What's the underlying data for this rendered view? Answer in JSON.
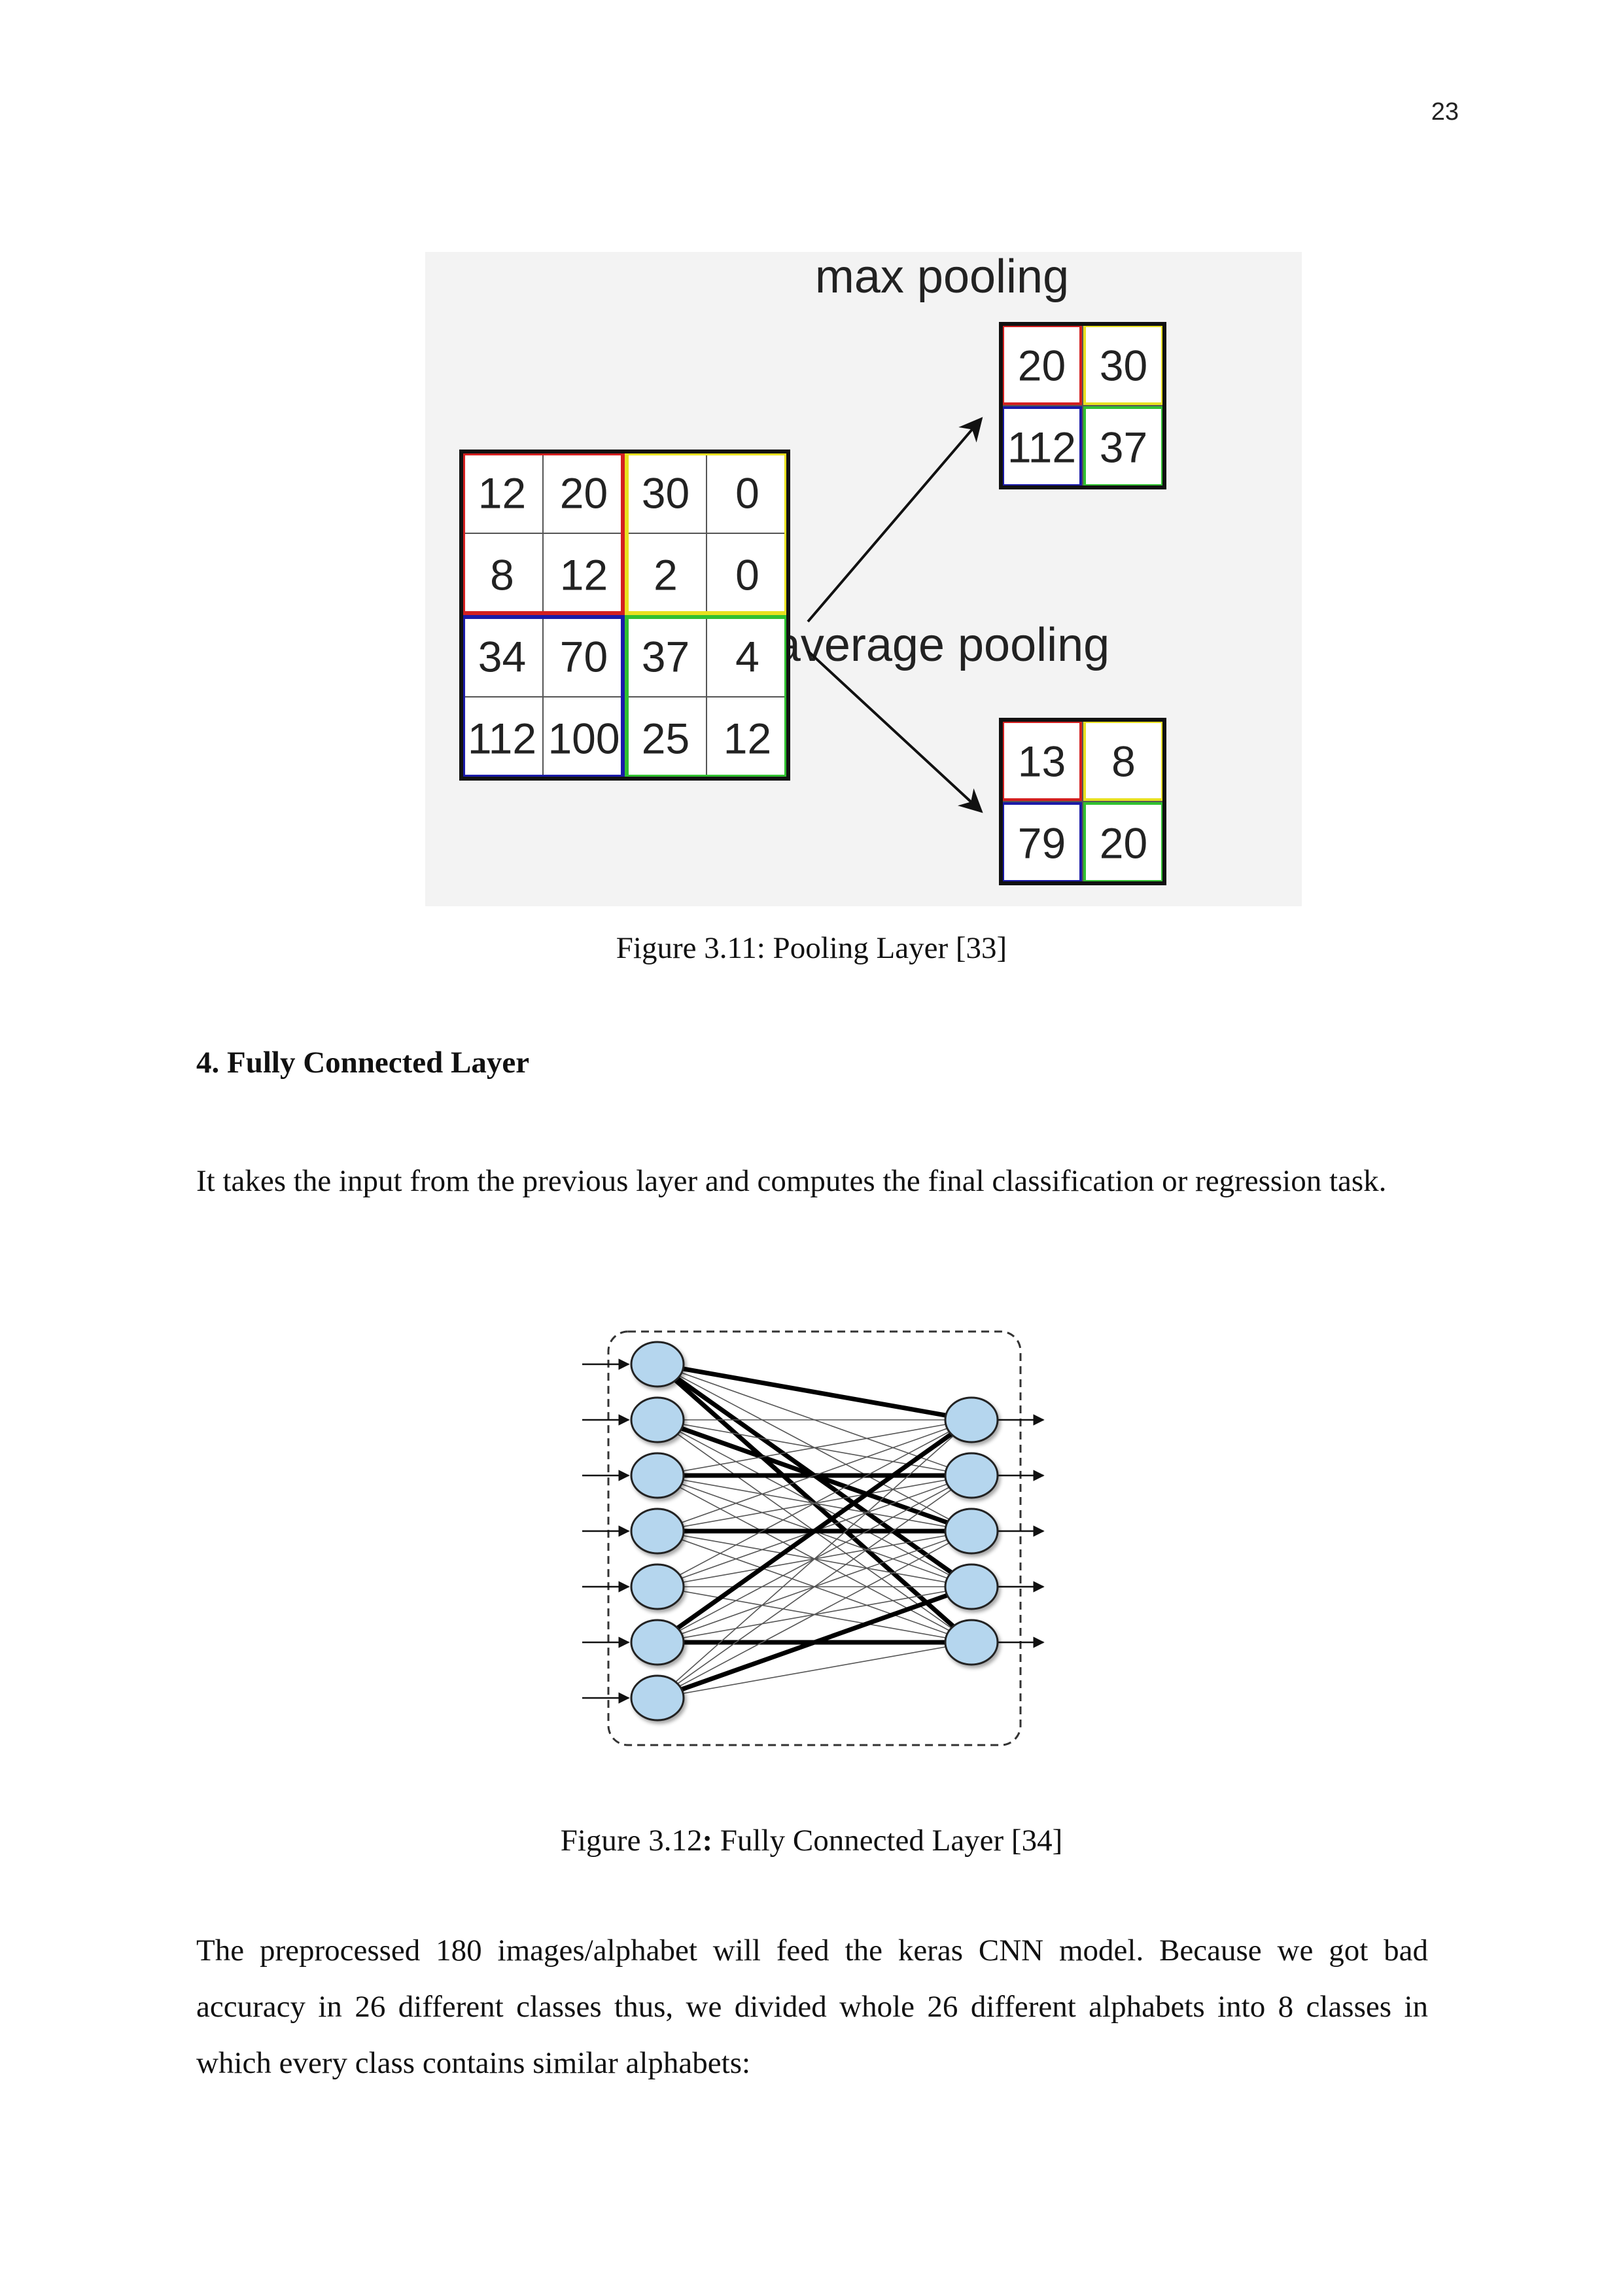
{
  "page": {
    "number": "23"
  },
  "figure_pooling": {
    "max_label": "max pooling",
    "avg_label": "average pooling",
    "input_grid": [
      [
        "12",
        "20",
        "30",
        "0"
      ],
      [
        "8",
        "12",
        "2",
        "0"
      ],
      [
        "34",
        "70",
        "37",
        "4"
      ],
      [
        "112",
        "100",
        "25",
        "12"
      ]
    ],
    "max_grid": [
      [
        "20",
        "30"
      ],
      [
        "112",
        "37"
      ]
    ],
    "avg_grid": [
      [
        "13",
        "8"
      ],
      [
        "79",
        "20"
      ]
    ],
    "quadrant_colors": {
      "top_left": "#d42020",
      "top_right": "#e8e020",
      "bottom_left": "#1a1aa8",
      "bottom_right": "#30c030"
    },
    "caption": "Figure 3.11: Pooling Layer [33]"
  },
  "section": {
    "heading": "4.  Fully Connected Layer",
    "paragraph": "It takes the input from the previous layer and computes the final classification or regression task."
  },
  "figure_fc": {
    "caption_prefix": "Figure 3.12",
    "caption_colon": ":",
    "caption_rest": " Fully Connected Layer [34]",
    "input_neurons": 7,
    "output_neurons": 5,
    "neuron_color": "#b5d6ee"
  },
  "closing": {
    "paragraph": "The preprocessed 180 images/alphabet will feed the keras CNN model. Because we got bad accuracy in 26 different classes thus, we divided whole 26 different alphabets into 8 classes in which every class contains similar alphabets:"
  }
}
